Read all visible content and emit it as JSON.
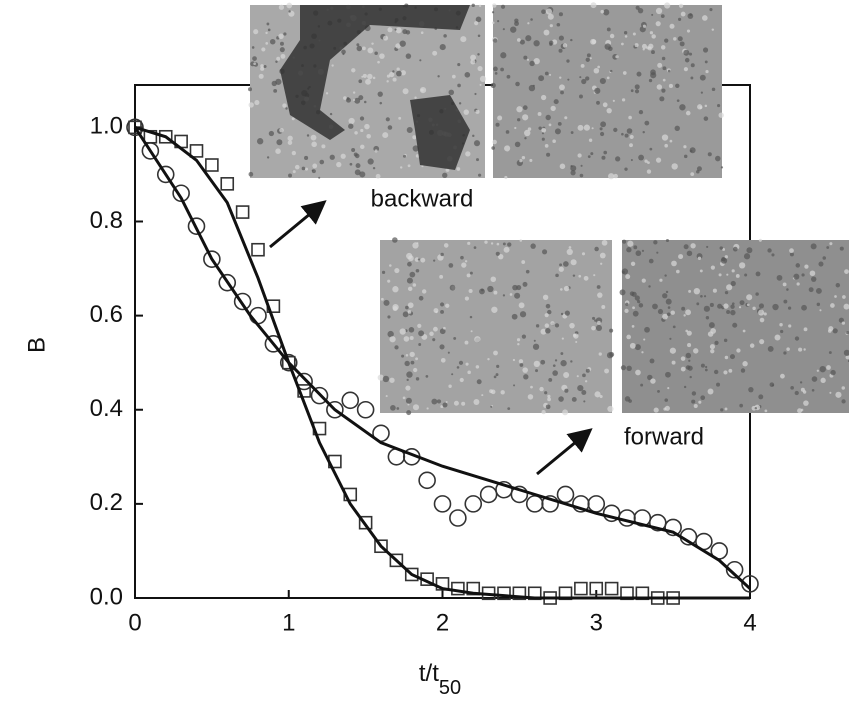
{
  "chart_data": {
    "type": "scatter",
    "xlabel": "t/t",
    "xlabel_sub": "50",
    "ylabel": "B",
    "xlim": [
      0,
      4
    ],
    "ylim": [
      0,
      1.09
    ],
    "xticks": [
      0,
      1,
      2,
      3,
      4
    ],
    "yticks": [
      {
        "value": 0,
        "label": "0.0"
      },
      {
        "value": 0.2,
        "label": "0.2"
      },
      {
        "value": 0.4,
        "label": "0.4"
      },
      {
        "value": 0.6,
        "label": "0.6"
      },
      {
        "value": 0.8,
        "label": "0.8"
      },
      {
        "value": 1.0,
        "label": "1.0"
      }
    ],
    "annotations": [
      "backward",
      "forward"
    ],
    "series": [
      {
        "marker": "square",
        "color": "#333333",
        "x": [
          0,
          0.1,
          0.2,
          0.3,
          0.4,
          0.5,
          0.6,
          0.7,
          0.8,
          0.9,
          1.0,
          1.1,
          1.2,
          1.3,
          1.4,
          1.5,
          1.6,
          1.7,
          1.8,
          1.9,
          2.0,
          2.1,
          2.2,
          2.3,
          2.4,
          2.5,
          2.6,
          2.7,
          2.8,
          2.9,
          3.0,
          3.1,
          3.2,
          3.3,
          3.4,
          3.5
        ],
        "values": [
          1.0,
          0.98,
          0.98,
          0.97,
          0.95,
          0.92,
          0.88,
          0.82,
          0.74,
          0.62,
          0.5,
          0.44,
          0.36,
          0.29,
          0.22,
          0.16,
          0.11,
          0.08,
          0.05,
          0.04,
          0.03,
          0.02,
          0.02,
          0.01,
          0.01,
          0.01,
          0.01,
          0.0,
          0.01,
          0.02,
          0.02,
          0.02,
          0.01,
          0.01,
          0.0,
          0.0
        ]
      },
      {
        "marker": "circle",
        "color": "#333333",
        "x": [
          0,
          0.1,
          0.2,
          0.3,
          0.4,
          0.5,
          0.6,
          0.7,
          0.8,
          0.9,
          1.0,
          1.1,
          1.2,
          1.3,
          1.4,
          1.5,
          1.6,
          1.7,
          1.8,
          1.9,
          2.0,
          2.1,
          2.2,
          2.3,
          2.4,
          2.5,
          2.6,
          2.7,
          2.8,
          2.9,
          3.0,
          3.1,
          3.2,
          3.3,
          3.4,
          3.5,
          3.6,
          3.7,
          3.8,
          3.9,
          4.0
        ],
        "values": [
          1.0,
          0.95,
          0.9,
          0.86,
          0.79,
          0.72,
          0.67,
          0.63,
          0.6,
          0.54,
          0.5,
          0.46,
          0.43,
          0.4,
          0.42,
          0.4,
          0.35,
          0.3,
          0.3,
          0.25,
          0.2,
          0.17,
          0.2,
          0.22,
          0.23,
          0.22,
          0.2,
          0.2,
          0.22,
          0.2,
          0.2,
          0.18,
          0.17,
          0.17,
          0.16,
          0.15,
          0.13,
          0.12,
          0.1,
          0.06,
          0.03
        ]
      },
      {
        "kind": "line",
        "color": "#111111",
        "x": [
          0,
          0.2,
          0.4,
          0.6,
          0.8,
          1.0,
          1.2,
          1.4,
          1.6,
          1.8,
          2.0,
          2.2,
          2.6,
          3.0,
          3.5,
          4.0
        ],
        "values": [
          1.0,
          0.98,
          0.93,
          0.84,
          0.68,
          0.5,
          0.33,
          0.2,
          0.11,
          0.05,
          0.02,
          0.01,
          0.0,
          0.0,
          0.0,
          0.0
        ]
      },
      {
        "kind": "line",
        "color": "#111111",
        "x": [
          0,
          0.3,
          0.5,
          0.75,
          1.0,
          1.3,
          1.6,
          2.0,
          2.5,
          3.0,
          3.5,
          3.8,
          4.0
        ],
        "values": [
          1.0,
          0.85,
          0.72,
          0.6,
          0.5,
          0.4,
          0.33,
          0.28,
          0.23,
          0.18,
          0.14,
          0.08,
          0.02
        ]
      }
    ]
  }
}
